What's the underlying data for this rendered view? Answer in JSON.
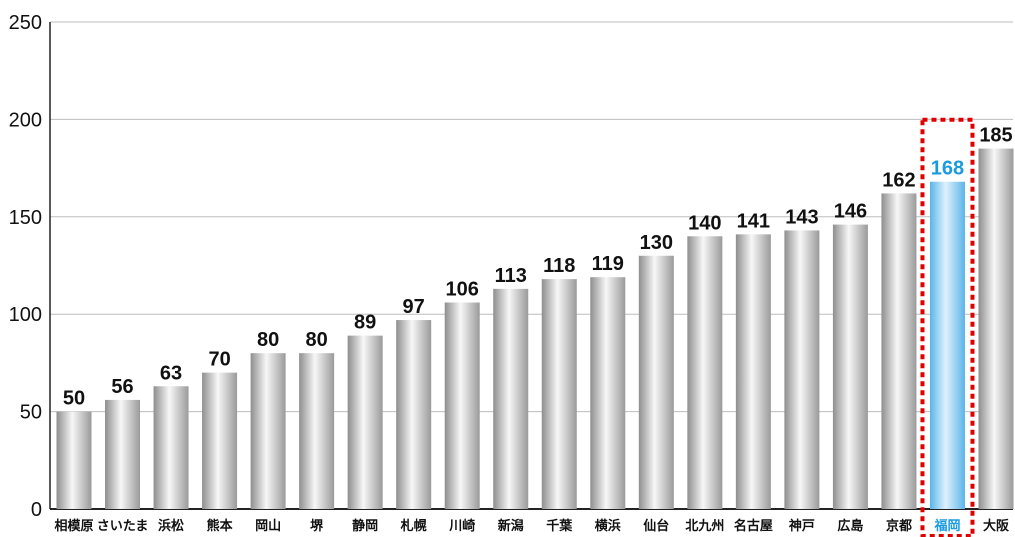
{
  "chart_data": {
    "type": "bar",
    "categories": [
      "相模原",
      "さいたま",
      "浜松",
      "熊本",
      "岡山",
      "堺",
      "静岡",
      "札幌",
      "川崎",
      "新潟",
      "千葉",
      "横浜",
      "仙台",
      "北九州",
      "名古屋",
      "神戸",
      "広島",
      "京都",
      "福岡",
      "大阪"
    ],
    "values": [
      50,
      56,
      63,
      70,
      80,
      80,
      89,
      97,
      106,
      113,
      118,
      119,
      130,
      140,
      141,
      143,
      146,
      162,
      168,
      185
    ],
    "title": "",
    "xlabel": "",
    "ylabel": "",
    "ylim": [
      0,
      250
    ],
    "yticks": [
      0,
      50,
      100,
      150,
      200,
      250
    ],
    "grid": true,
    "legend": "none",
    "highlight_category": "福岡",
    "colors": {
      "bar_dark": "#8e8e8e",
      "bar_light": "#f7f7f7",
      "highlight_dark": "#5ab4ea",
      "highlight_light": "#dff1fd",
      "highlight_label": "#1a9be0",
      "highlight_box": "#e00000",
      "grid": "#bdbdbd",
      "axis": "#222222"
    }
  }
}
